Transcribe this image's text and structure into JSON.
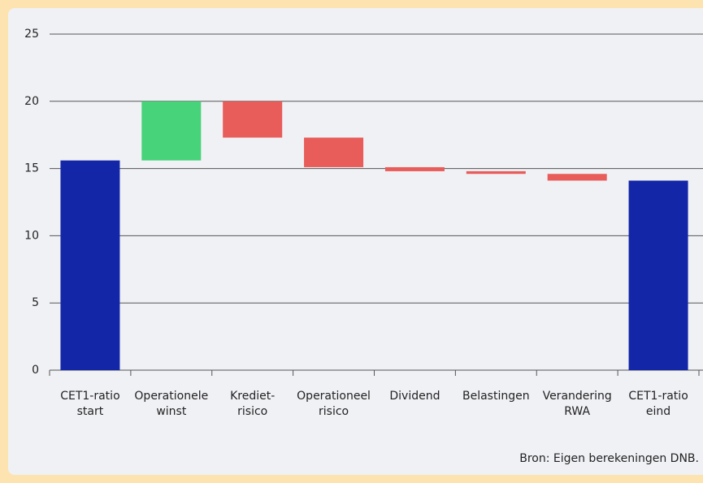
{
  "chart_data": {
    "type": "waterfall",
    "categories": [
      [
        "CET1-ratio",
        "start"
      ],
      [
        "Operationele",
        "winst"
      ],
      [
        "Krediet-",
        "risico"
      ],
      [
        "Operationeel",
        "risico"
      ],
      [
        "Dividend"
      ],
      [
        "Belastingen"
      ],
      [
        "Verandering",
        "RWA"
      ],
      [
        "CET1-ratio",
        "eind"
      ]
    ],
    "values": [
      15.6,
      4.4,
      -2.7,
      -2.2,
      -0.3,
      -0.2,
      -0.5,
      14.1
    ],
    "measure": [
      "absolute",
      "relative",
      "relative",
      "relative",
      "relative",
      "relative",
      "relative",
      "total"
    ],
    "colors": {
      "total": "#1426a8",
      "increase": "#47d37a",
      "decrease": "#e85c5a"
    },
    "ylim": [
      0,
      25
    ],
    "yticks": [
      0,
      5,
      10,
      15,
      20,
      25
    ],
    "grid": true,
    "source": "Bron: Eigen berekeningen DNB."
  }
}
